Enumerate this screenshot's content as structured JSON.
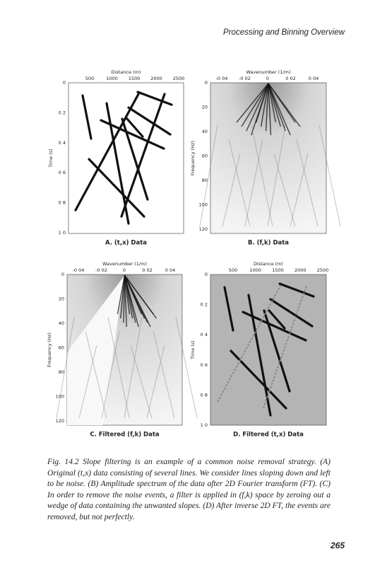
{
  "header": {
    "running_title": "Processing and Binning Overview"
  },
  "figure": {
    "panels": [
      {
        "caption": "A. (t,x) Data",
        "top_axis_label": "Distance (m)",
        "top_ticks": [
          "500",
          "1000",
          "1500",
          "2000",
          "2500"
        ],
        "left_axis_label": "Time (s)",
        "left_ticks": [
          "0",
          "0 2",
          "0 4",
          "0 6",
          "0 8",
          "1 0"
        ]
      },
      {
        "caption": "B. (f,k) Data",
        "top_axis_label": "Wavenumber (1/m)",
        "top_ticks": [
          "-0 04",
          "-0 02",
          "0",
          "0 02",
          "0 04"
        ],
        "left_axis_label": "Frequency (Hz)",
        "left_ticks": [
          "0",
          "20",
          "40",
          "60",
          "80",
          "100",
          "120"
        ]
      },
      {
        "caption": "C. Filtered (f,k) Data",
        "top_axis_label": "Wavenumber (1/m)",
        "top_ticks": [
          "-0 04",
          "-0 02",
          "0",
          "0 02",
          "0 04"
        ],
        "left_axis_label": "Frequency (Hz)",
        "left_ticks": [
          "0",
          "20",
          "40",
          "60",
          "80",
          "100",
          "120"
        ]
      },
      {
        "caption": "D. Filtered (t,x) Data",
        "top_axis_label": "Distance (m)",
        "top_ticks": [
          "500",
          "1000",
          "1500",
          "2000",
          "2500"
        ],
        "left_axis_label": "Time (s)",
        "left_ticks": [
          "0",
          "0 2",
          "0 4",
          "0 6",
          "0 8",
          "1 0"
        ]
      }
    ],
    "caption": "Fig. 14.2 Slope filtering is an example of a common noise removal strategy. (A) Original (t,x) data consisting of several lines. We consider lines sloping down and left to be noise. (B) Amplitude spectrum of the data after 2D Fourier transform (FT). (C) In order to remove the noise events, a filter is applied in (f,k) space by zeroing out a wedge of data containing the unwanted slopes. (D) After inverse 2D FT, the events are removed, but not perfectly."
  },
  "page_number": "265"
}
